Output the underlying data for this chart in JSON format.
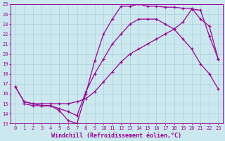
{
  "xlabel": "Windchill (Refroidissement éolien,°C)",
  "xlim": [
    -0.5,
    23.5
  ],
  "ylim": [
    13,
    25
  ],
  "xticks": [
    0,
    1,
    2,
    3,
    4,
    5,
    6,
    7,
    8,
    9,
    10,
    11,
    12,
    13,
    14,
    15,
    16,
    17,
    18,
    19,
    20,
    21,
    22,
    23
  ],
  "yticks": [
    13,
    14,
    15,
    16,
    17,
    18,
    19,
    20,
    21,
    22,
    23,
    24,
    25
  ],
  "background_color": "#cce8ef",
  "grid_color": "#aacfdb",
  "line_color": "#990099",
  "line1_x": [
    0,
    1,
    2,
    3,
    4,
    5,
    6,
    7,
    8,
    9,
    10,
    11,
    12,
    13,
    14,
    15,
    16,
    17,
    18,
    19,
    20,
    21,
    22,
    23
  ],
  "line1_y": [
    16.7,
    15.2,
    15.0,
    14.8,
    14.8,
    14.3,
    13.3,
    13.0,
    16.0,
    19.3,
    22.0,
    23.5,
    24.8,
    24.8,
    25.0,
    24.8,
    24.8,
    24.7,
    24.7,
    24.6,
    24.6,
    23.5,
    22.8,
    19.5
  ],
  "line2_x": [
    0,
    1,
    2,
    3,
    4,
    5,
    6,
    7,
    8,
    9,
    10,
    11,
    12,
    13,
    14,
    15,
    16,
    17,
    18,
    19,
    20,
    21,
    22,
    23
  ],
  "line2_y": [
    16.7,
    15.2,
    15.0,
    15.0,
    15.0,
    15.0,
    15.0,
    15.2,
    15.5,
    16.2,
    17.2,
    18.2,
    19.2,
    20.0,
    20.5,
    21.0,
    21.5,
    22.0,
    22.5,
    23.2,
    24.5,
    24.4,
    21.8,
    19.5
  ],
  "line3_x": [
    1,
    2,
    3,
    4,
    5,
    6,
    7,
    8,
    9,
    10,
    11,
    12,
    13,
    14,
    15,
    16,
    17,
    18,
    19,
    20,
    21,
    22,
    23
  ],
  "line3_y": [
    15.0,
    14.8,
    14.8,
    14.8,
    14.5,
    14.2,
    13.8,
    16.2,
    18.0,
    19.5,
    21.0,
    22.0,
    23.0,
    23.5,
    23.5,
    23.5,
    23.0,
    22.5,
    21.5,
    20.5,
    19.0,
    18.0,
    16.5
  ],
  "marker": "+",
  "marker_size": 3.5,
  "markeredgewidth": 0.9,
  "linewidth": 0.9,
  "tick_fontsize": 5.0,
  "label_fontsize": 6.0
}
